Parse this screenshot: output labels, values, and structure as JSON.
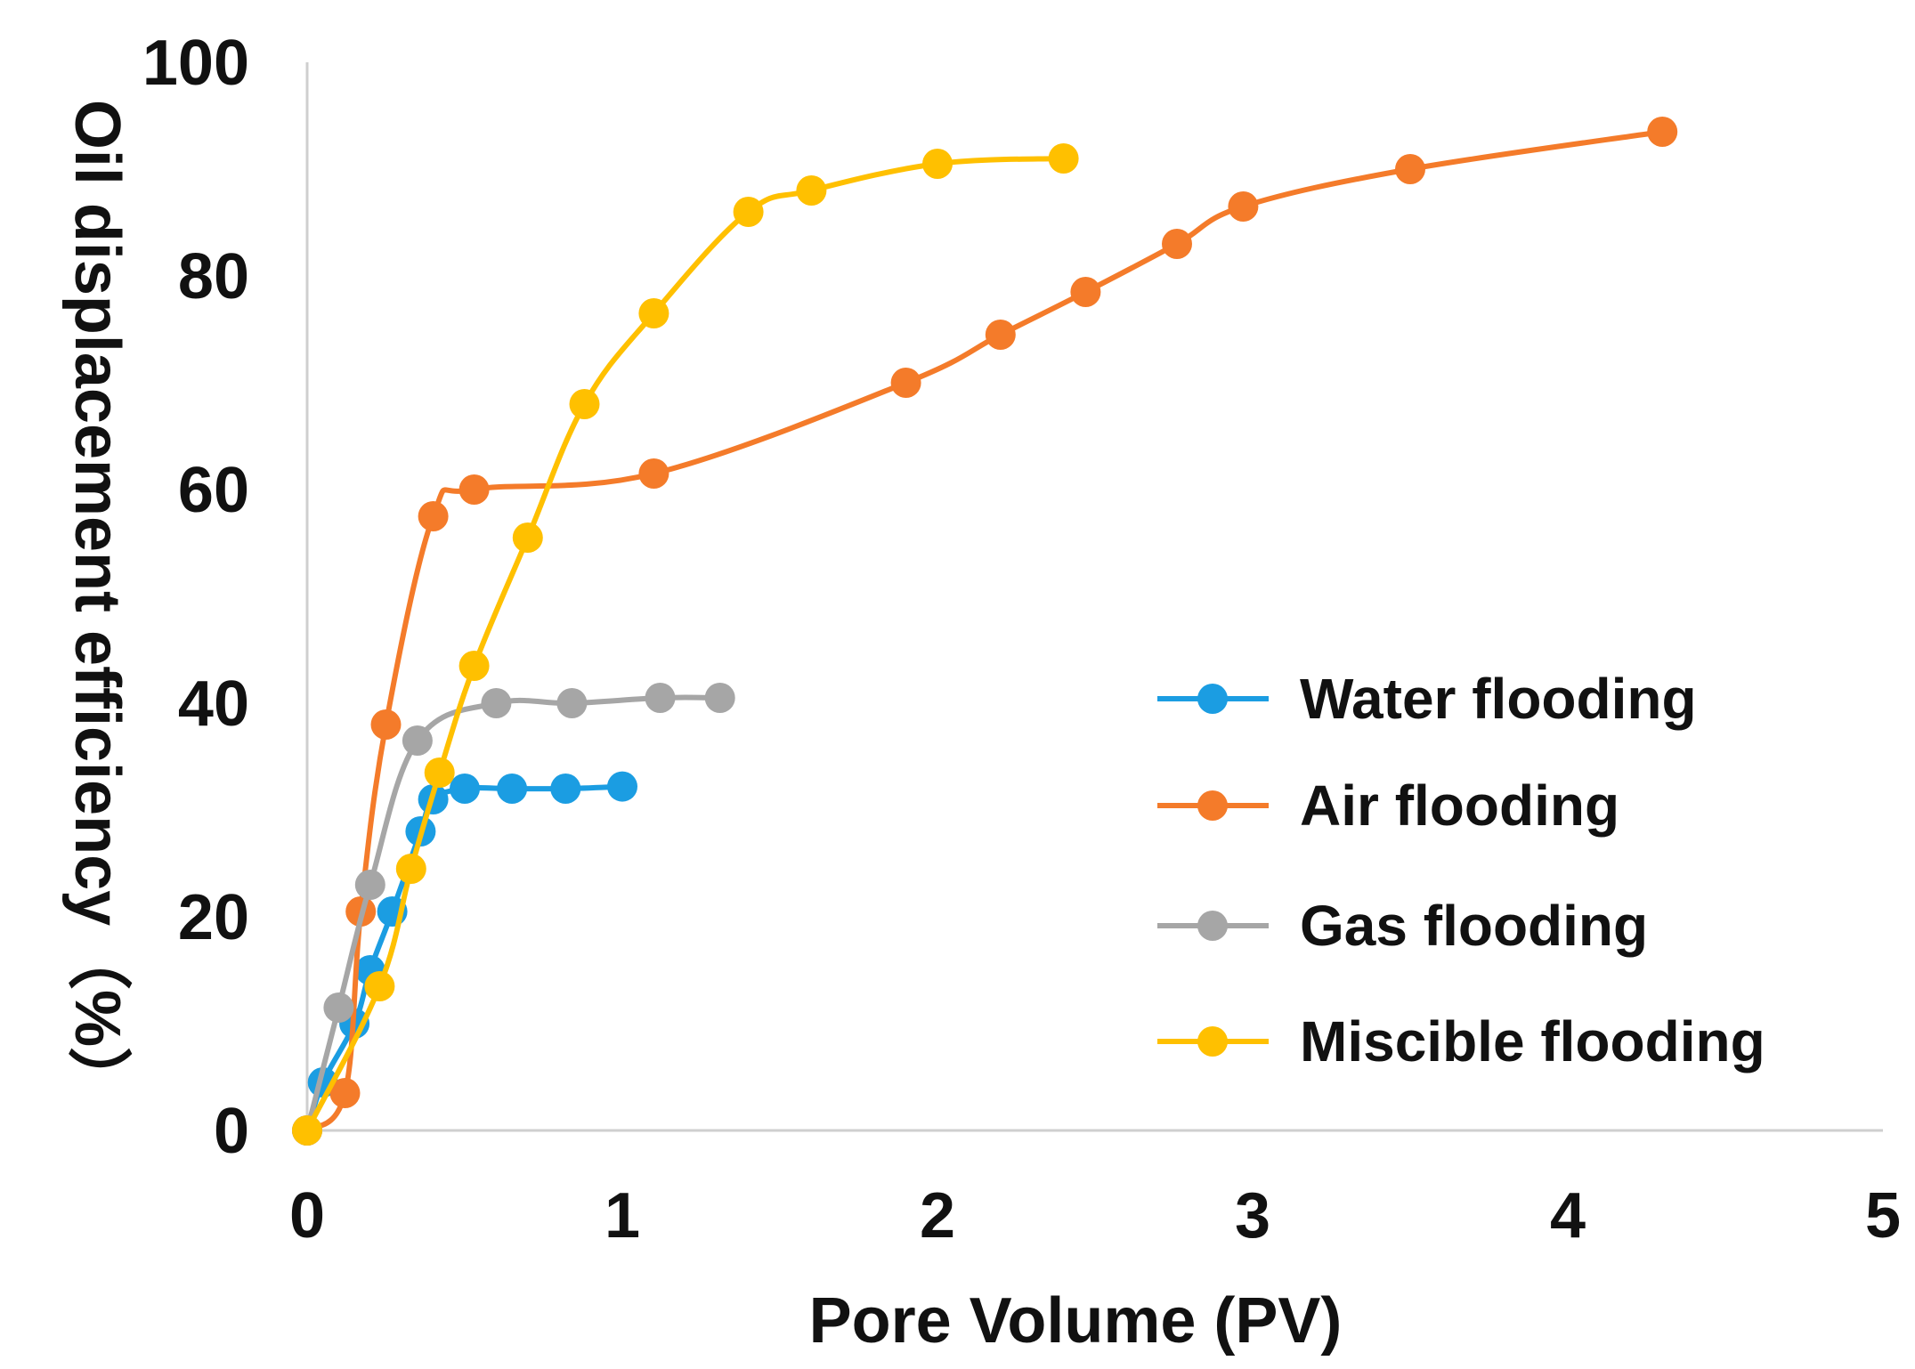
{
  "chart_data": {
    "type": "line",
    "title": "",
    "xlabel": "Pore Volume (PV)",
    "ylabel": "Oil displacement efficiency（%）",
    "xlim": [
      0,
      5
    ],
    "ylim": [
      0,
      100
    ],
    "xticks": [
      "0",
      "1",
      "2",
      "3",
      "4",
      "5"
    ],
    "yticks": [
      "0",
      "20",
      "40",
      "60",
      "80",
      "100"
    ],
    "grid": false,
    "legend_position": "right",
    "series": [
      {
        "name": "Water flooding",
        "color": "#1b9de2",
        "x": [
          0,
          0.05,
          0.15,
          0.2,
          0.27,
          0.36,
          0.4,
          0.5,
          0.65,
          0.82,
          1.0
        ],
        "y": [
          0,
          4.5,
          10,
          15,
          20.5,
          28,
          31,
          32,
          32,
          32,
          32.2
        ]
      },
      {
        "name": "Air flooding",
        "color": "#f47b2a",
        "x": [
          0,
          0.12,
          0.17,
          0.25,
          0.4,
          0.53,
          1.1,
          1.9,
          2.2,
          2.47,
          2.76,
          2.97,
          3.5,
          4.3
        ],
        "y": [
          0,
          3.5,
          20.5,
          38,
          57.5,
          60,
          61.5,
          70,
          74.5,
          78.5,
          83,
          86.5,
          90,
          93.5
        ]
      },
      {
        "name": "Gas flooding",
        "color": "#a6a6a6",
        "x": [
          0,
          0.1,
          0.2,
          0.35,
          0.6,
          0.84,
          1.12,
          1.31
        ],
        "y": [
          0,
          11.5,
          23,
          36.5,
          40,
          40,
          40.5,
          40.5
        ]
      },
      {
        "name": "Miscible flooding",
        "color": "#ffc000",
        "x": [
          0,
          0.23,
          0.33,
          0.42,
          0.53,
          0.7,
          0.88,
          1.1,
          1.4,
          1.6,
          2.0,
          2.4
        ],
        "y": [
          0,
          13.5,
          24.5,
          33.5,
          43.5,
          55.5,
          68,
          76.5,
          86,
          88,
          90.5,
          91
        ]
      }
    ]
  }
}
